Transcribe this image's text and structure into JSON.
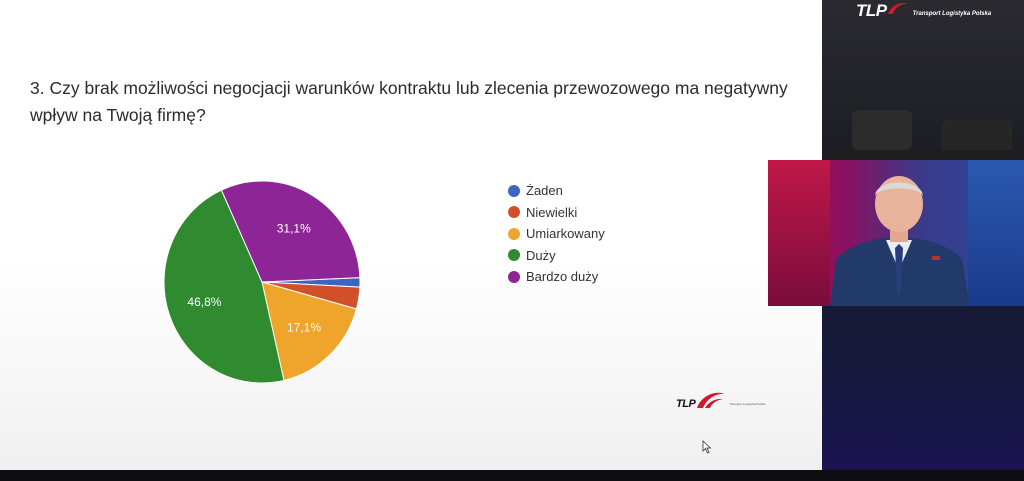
{
  "question": "3. Czy brak możliwości negocjacji warunków kontraktu lub zlecenia przewozowego ma negatywny wpływ na Twoją firmę?",
  "chart_data": {
    "type": "pie",
    "title": "",
    "slices": [
      {
        "label": "Żaden",
        "value": 1.5,
        "color": "#3d64c2",
        "display": ""
      },
      {
        "label": "Niewielki",
        "value": 3.5,
        "color": "#d1502a",
        "display": ""
      },
      {
        "label": "Umiarkowany",
        "value": 17.1,
        "color": "#efa42c",
        "display": "17,1%"
      },
      {
        "label": "Duży",
        "value": 46.8,
        "color": "#2f8a30",
        "display": "46,8%"
      },
      {
        "label": "Bardzo duży",
        "value": 31.1,
        "color": "#8e2596",
        "display": "31,1%"
      }
    ],
    "legend_position": "right"
  },
  "logo": {
    "text": "TLP",
    "subtitle": "Transport Logistyka Polska",
    "color": "#d11a2a"
  },
  "icons": {
    "cursor": "mouse-cursor-icon",
    "presenter": "presenter-video"
  }
}
